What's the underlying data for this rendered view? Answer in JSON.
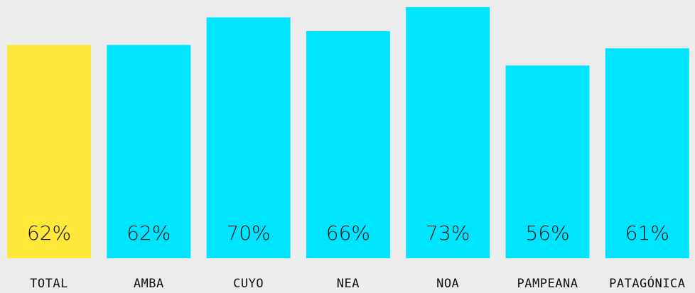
{
  "chart_data": {
    "type": "bar",
    "categories": [
      "TOTAL",
      "AMBA",
      "CUYO",
      "NEA",
      "NOA",
      "PAMPEANA",
      "PATAGÓNICA"
    ],
    "values": [
      62,
      62,
      70,
      66,
      73,
      56,
      61
    ],
    "value_labels": [
      "62%",
      "62%",
      "70%",
      "66%",
      "73%",
      "56%",
      "61%"
    ],
    "colors": [
      "#ffe83a",
      "#00e5ff",
      "#00e5ff",
      "#00e5ff",
      "#00e5ff",
      "#00e5ff",
      "#00e5ff"
    ]
  }
}
